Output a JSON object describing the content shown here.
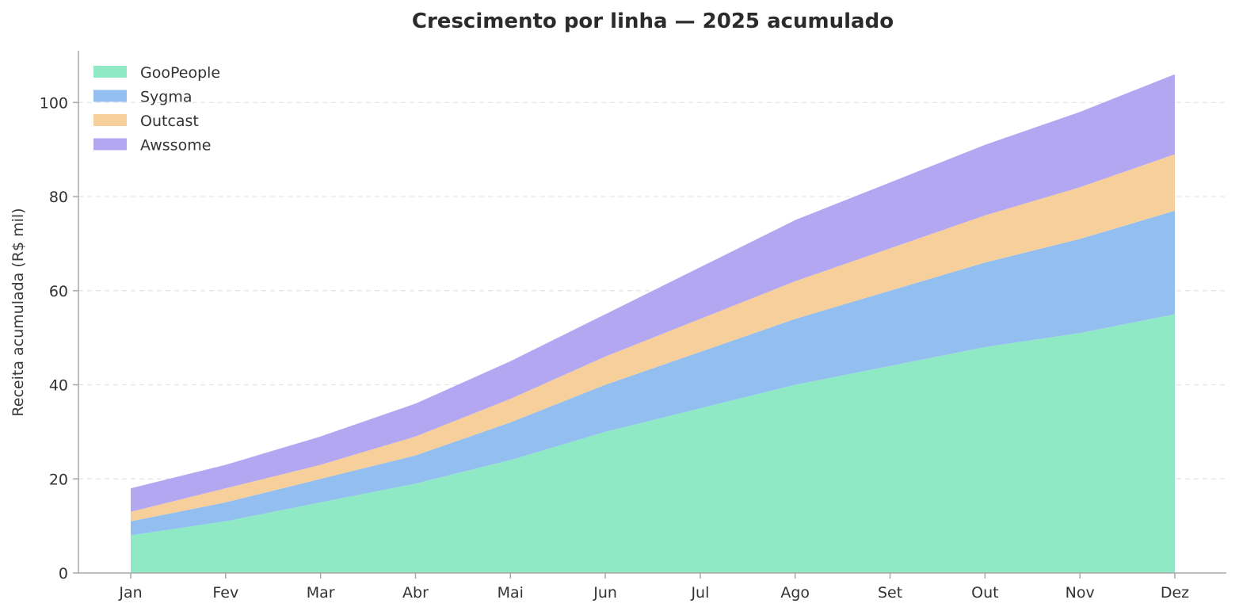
{
  "chart_data": {
    "type": "area",
    "stacked": true,
    "title": "Crescimento por linha — 2025 acumulado",
    "xlabel": "",
    "ylabel": "Receita acumulada (R$ mil)",
    "categories": [
      "Jan",
      "Fev",
      "Mar",
      "Abr",
      "Mai",
      "Jun",
      "Jul",
      "Ago",
      "Set",
      "Out",
      "Nov",
      "Dez"
    ],
    "ylim": [
      0,
      111
    ],
    "yticks": [
      0,
      20,
      40,
      60,
      80,
      100
    ],
    "grid": "horizontal-dashed",
    "legend_position": "top-left",
    "series": [
      {
        "name": "GooPeople",
        "color": "#8ee9c4",
        "values": [
          8,
          11,
          15,
          19,
          24,
          30,
          35,
          40,
          44,
          48,
          51,
          55
        ]
      },
      {
        "name": "Sygma",
        "color": "#93bff0",
        "values": [
          3,
          4,
          5,
          6,
          8,
          10,
          12,
          14,
          16,
          18,
          20,
          22
        ]
      },
      {
        "name": "Outcast",
        "color": "#f7cf9b",
        "values": [
          2,
          3,
          3,
          4,
          5,
          6,
          7,
          8,
          9,
          10,
          11,
          12
        ]
      },
      {
        "name": "Awssome",
        "color": "#b3a7f1",
        "values": [
          5,
          5,
          6,
          7,
          8,
          9,
          11,
          13,
          14,
          15,
          16,
          17
        ]
      }
    ]
  }
}
